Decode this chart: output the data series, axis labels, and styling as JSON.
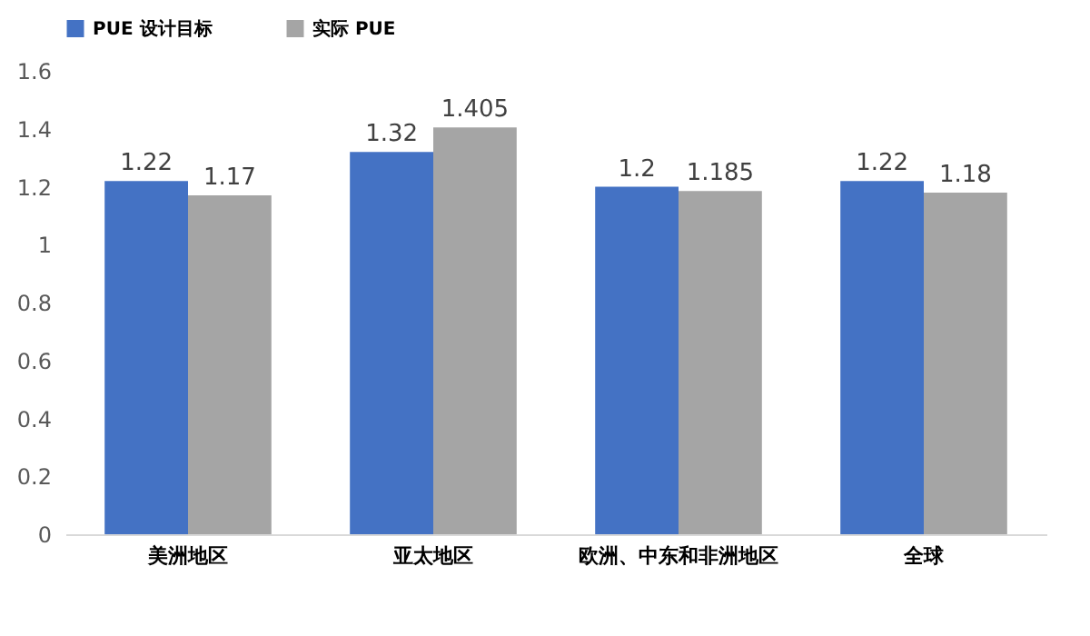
{
  "chart_data": {
    "type": "bar",
    "categories": [
      "美洲地区",
      "亚太地区",
      "欧洲、中东和非洲地区",
      "全球"
    ],
    "series": [
      {
        "name": "PUE 设计目标",
        "color": "#4472c4",
        "values": [
          1.22,
          1.32,
          1.2,
          1.22
        ]
      },
      {
        "name": "实际 PUE",
        "color": "#a5a5a5",
        "values": [
          1.17,
          1.405,
          1.185,
          1.18
        ]
      }
    ],
    "ylim": [
      0,
      1.6
    ],
    "yticks": [
      0,
      0.2,
      0.4,
      0.6,
      0.8,
      1,
      1.2,
      1.4,
      1.6
    ],
    "grid": false,
    "legend": "top",
    "data_labels": true
  }
}
